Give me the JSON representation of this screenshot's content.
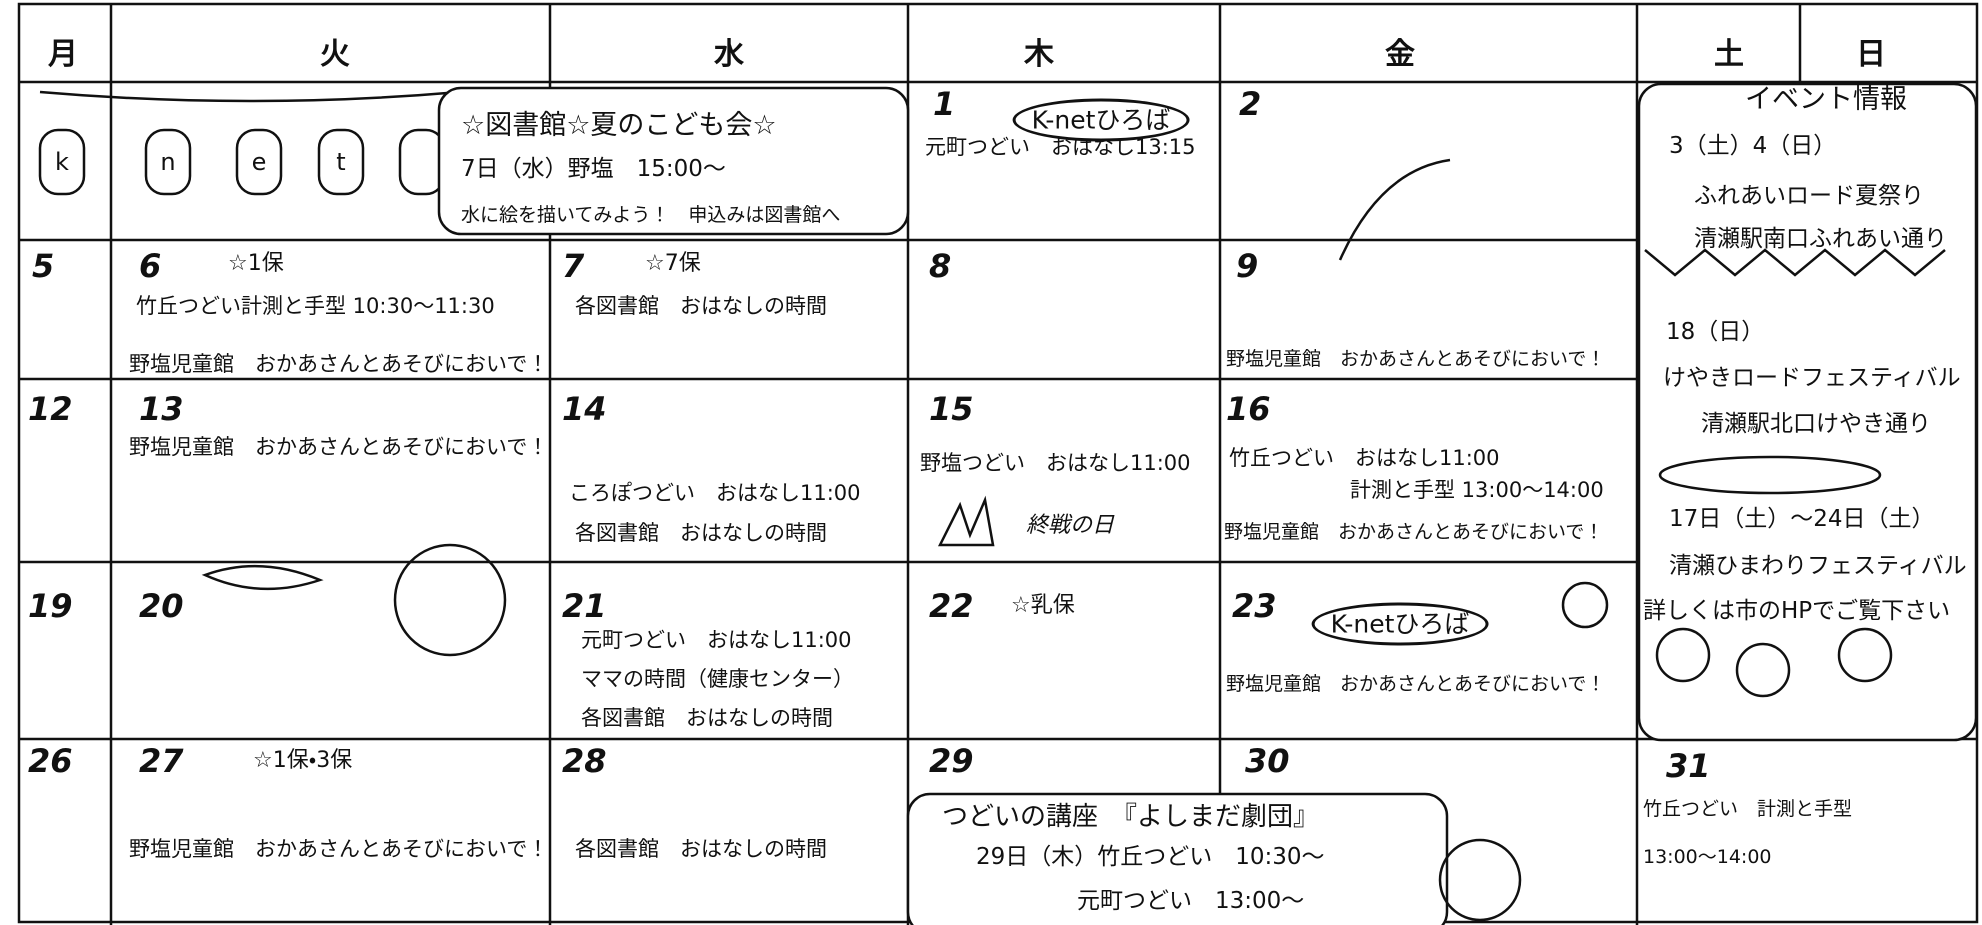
{
  "header": {
    "weekdays": [
      "月",
      "火",
      "水",
      "木",
      "金",
      "土",
      "日"
    ]
  },
  "lantern_letters": [
    "k",
    "n",
    "e",
    "t"
  ],
  "library_event": {
    "title": "☆図書館☆夏のこども会☆",
    "date": "7日（水）野塩　15:00～",
    "note": "水に絵を描いてみよう！　申込みは図書館へ"
  },
  "days": [
    {
      "day": "1",
      "items": [
        "元町つどい　おはなし13:15"
      ]
    },
    {
      "day": "2"
    },
    {
      "day": "5"
    },
    {
      "day": "6",
      "note": "☆1保",
      "items": [
        "竹丘つどい計測と手型 10:30～11:30",
        "野塩児童館　おかあさんとあそびにおいで！"
      ]
    },
    {
      "day": "7",
      "note": "☆7保",
      "items": [
        "各図書館　おはなしの時間"
      ]
    },
    {
      "day": "8"
    },
    {
      "day": "9",
      "items": [
        "野塩児童館　おかあさんとあそびにおいで！"
      ]
    },
    {
      "day": "12"
    },
    {
      "day": "13",
      "items": [
        "野塩児童館　おかあさんとあそびにおいで！"
      ]
    },
    {
      "day": "14",
      "items": [
        "ころぽつどい　おはなし11:00",
        "各図書館　おはなしの時間"
      ]
    },
    {
      "day": "15",
      "items": [
        "野塩つどい　おはなし11:00"
      ]
    },
    {
      "day": "16",
      "items": [
        "竹丘つどい　おはなし11:00",
        "計測と手型 13:00～14:00",
        "野塩児童館　おかあさんとあそびにおいで！"
      ]
    },
    {
      "day": "19"
    },
    {
      "day": "20"
    },
    {
      "day": "21",
      "items": [
        "元町つどい　おはなし11:00",
        "ママの時間（健康センター）",
        "各図書館　おはなしの時間"
      ]
    },
    {
      "day": "22",
      "note": "☆乳保"
    },
    {
      "day": "23",
      "items": [
        "野塩児童館　おかあさんとあそびにおいで！"
      ]
    },
    {
      "day": "26"
    },
    {
      "day": "27",
      "note": "☆1保・3保",
      "items": [
        "野塩児童館　おかあさんとあそびにおいで！"
      ]
    },
    {
      "day": "28",
      "items": [
        "各図書館　おはなしの時間"
      ]
    },
    {
      "day": "29"
    },
    {
      "day": "30"
    },
    {
      "day": "31",
      "items": [
        "竹丘つどい　計測と手型",
        "13:00～14:00"
      ]
    }
  ],
  "kidsnet_badges": [
    "K-netひろば",
    "K-netひろば"
  ],
  "illustration_text": "終戦の日",
  "tsudoi_course": {
    "title": "つどいの講座　『よしまだ劇団』",
    "lines": [
      "29日（木）竹丘つどい　10:30～",
      "元町つどい　13:00～"
    ]
  },
  "event_info": {
    "title": "イベント情報",
    "events": [
      {
        "date": "3（土）4（日）",
        "lines": [
          "ふれあいロード夏祭り",
          "清瀬駅南口ふれあい通り"
        ]
      },
      {
        "date": "18（日）",
        "lines": [
          "けやきロードフェスティバル",
          "清瀬駅北口けやき通り"
        ]
      },
      {
        "date": "17日（土）～24日（土）",
        "lines": [
          "清瀬ひまわりフェスティバル"
        ]
      }
    ],
    "footer": "詳しくは市のHPでご覧下さい"
  }
}
